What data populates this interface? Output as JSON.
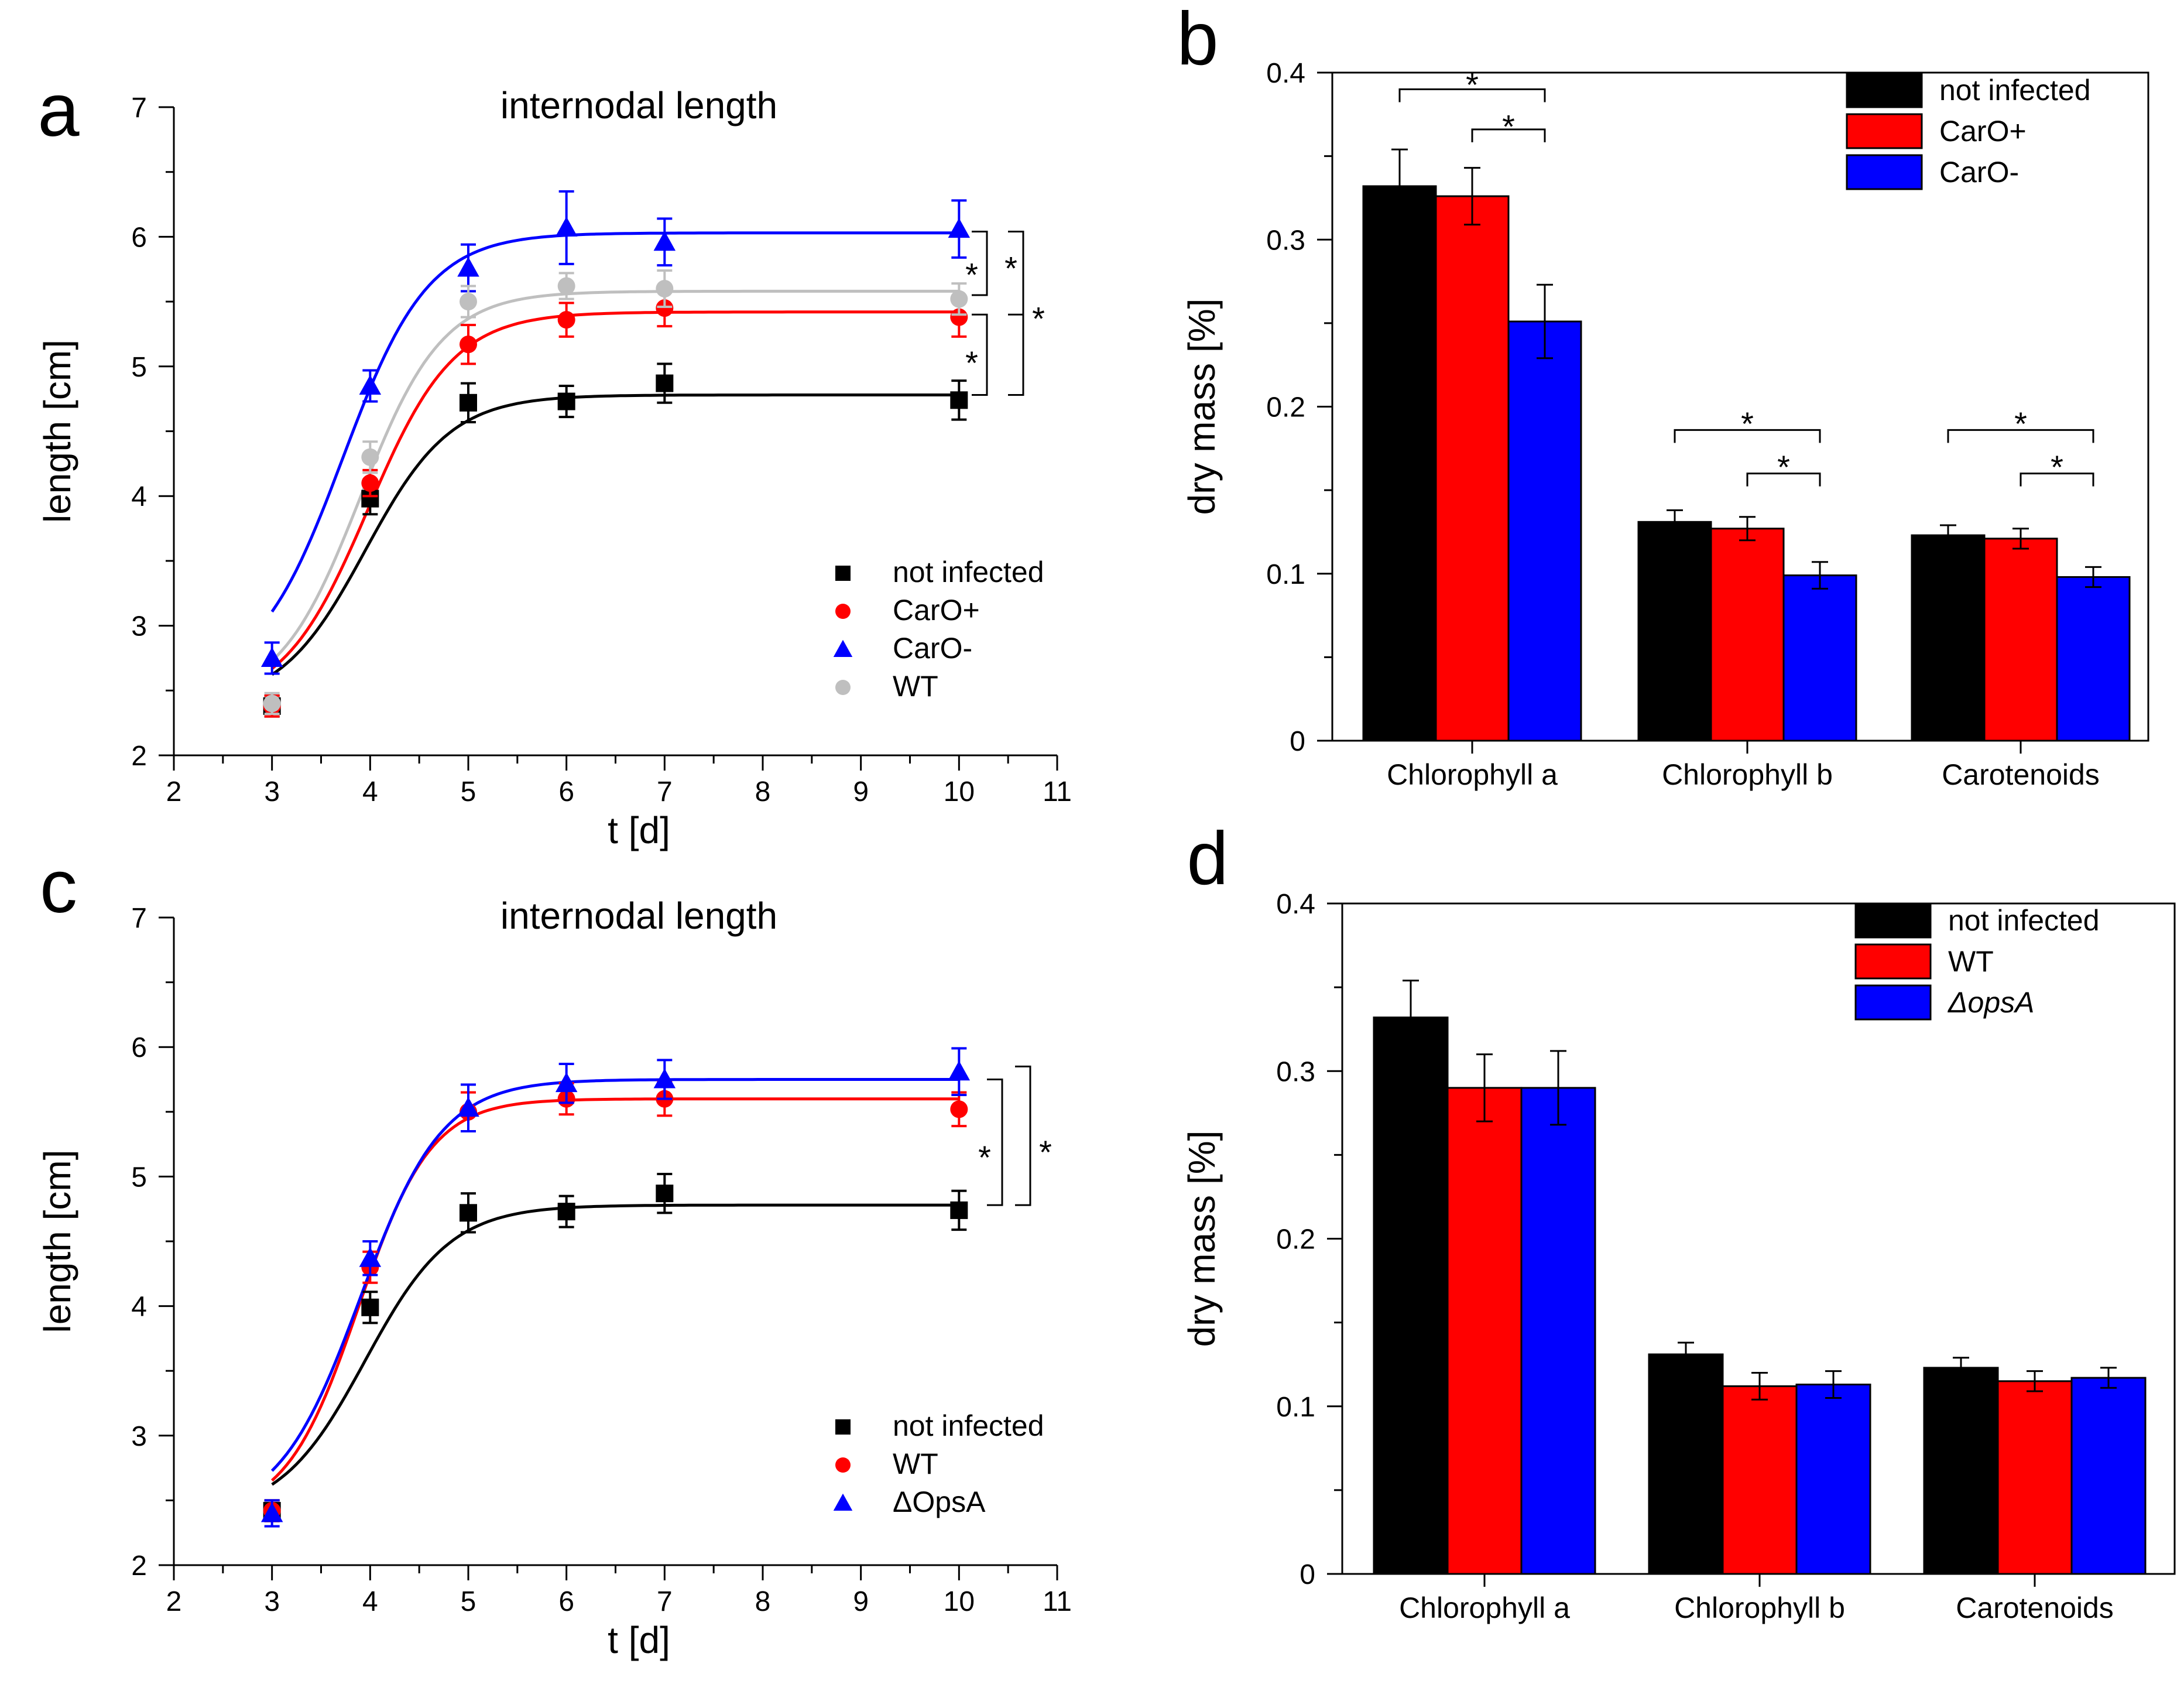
{
  "panels": [
    {
      "id": "a",
      "letter": "a"
    },
    {
      "id": "b",
      "letter": "b"
    },
    {
      "id": "c",
      "letter": "c"
    },
    {
      "id": "d",
      "letter": "d"
    }
  ],
  "chart_data": [
    {
      "id": "a",
      "type": "scatter",
      "panel_label": "a",
      "title": "internodal length",
      "xlabel": "t [d]",
      "ylabel": "length [cm]",
      "xlim": [
        2,
        11
      ],
      "ylim": [
        2,
        7
      ],
      "xticks": [
        "2",
        "3",
        "4",
        "5",
        "6",
        "7",
        "8",
        "9",
        "10",
        "11"
      ],
      "yticks": [
        "2",
        "3",
        "4",
        "5",
        "6",
        "7"
      ],
      "legend_position": "bottom-right",
      "x": [
        3,
        4,
        5,
        6,
        7,
        10
      ],
      "series": [
        {
          "name": "not infected",
          "color": "#000000",
          "marker": "square",
          "values": [
            2.38,
            3.98,
            4.72,
            4.73,
            4.87,
            4.74
          ],
          "err": [
            0.08,
            0.12,
            0.15,
            0.12,
            0.15,
            0.15
          ],
          "fit": {
            "L": 2.38,
            "U": 4.78,
            "k": 2.3,
            "x0": 3.95
          }
        },
        {
          "name": "CarO+",
          "color": "#ff0000",
          "marker": "circle",
          "values": [
            2.38,
            4.1,
            5.17,
            5.36,
            5.45,
            5.38
          ],
          "err": [
            0.08,
            0.1,
            0.15,
            0.13,
            0.14,
            0.15
          ],
          "fit": {
            "L": 2.38,
            "U": 5.42,
            "k": 2.3,
            "x0": 3.98
          }
        },
        {
          "name": "CarO-",
          "color": "#0000ff",
          "marker": "triangle",
          "values": [
            2.75,
            4.85,
            5.76,
            6.07,
            5.96,
            6.06
          ],
          "err": [
            0.12,
            0.12,
            0.18,
            0.28,
            0.18,
            0.22
          ],
          "fit": {
            "L": 2.55,
            "U": 6.03,
            "k": 2.3,
            "x0": 3.72
          }
        },
        {
          "name": "WT",
          "color": "#bfbfbf",
          "marker": "circle",
          "values": [
            2.4,
            4.3,
            5.5,
            5.62,
            5.6,
            5.52
          ],
          "err": [
            0.08,
            0.12,
            0.12,
            0.1,
            0.14,
            0.12
          ],
          "fit": {
            "L": 2.4,
            "U": 5.58,
            "k": 2.4,
            "x0": 3.9
          }
        }
      ],
      "significance_marks": [
        {
          "from": "CarO-",
          "to": "WT",
          "label": "*"
        },
        {
          "from": "CarO-",
          "to": "CarO+",
          "label": "*"
        },
        {
          "from": "CarO-",
          "to": "not infected",
          "label": "*"
        },
        {
          "from": "CarO+",
          "to": "not infected",
          "label": "*"
        }
      ]
    },
    {
      "id": "b",
      "type": "bar",
      "panel_label": "b",
      "xlabel": "",
      "ylabel": "dry mass [%]",
      "ylim": [
        0,
        0.4
      ],
      "yticks": [
        "0",
        "0.1",
        "0.2",
        "0.3",
        "0.4"
      ],
      "categories": [
        "Chlorophyll a",
        "Chlorophyll b",
        "Carotenoids"
      ],
      "legend_position": "top-right",
      "series": [
        {
          "name": "not infected",
          "color": "#000000",
          "values": [
            0.332,
            0.131,
            0.123
          ],
          "err": [
            0.022,
            0.007,
            0.006
          ]
        },
        {
          "name": "CarO+",
          "color": "#ff0000",
          "values": [
            0.326,
            0.127,
            0.121
          ],
          "err": [
            0.017,
            0.007,
            0.006
          ]
        },
        {
          "name": "CarO-",
          "color": "#0000ff",
          "values": [
            0.251,
            0.099,
            0.098
          ],
          "err": [
            0.022,
            0.008,
            0.006
          ]
        }
      ],
      "significance_marks": [
        {
          "category": "Chlorophyll a",
          "from": "not infected",
          "to": "CarO-",
          "label": "*"
        },
        {
          "category": "Chlorophyll a",
          "from": "CarO+",
          "to": "CarO-",
          "label": "*"
        },
        {
          "category": "Chlorophyll b",
          "from": "not infected",
          "to": "CarO-",
          "label": "*"
        },
        {
          "category": "Chlorophyll b",
          "from": "CarO+",
          "to": "CarO-",
          "label": "*"
        },
        {
          "category": "Carotenoids",
          "from": "not infected",
          "to": "CarO-",
          "label": "*"
        },
        {
          "category": "Carotenoids",
          "from": "CarO+",
          "to": "CarO-",
          "label": "*"
        }
      ]
    },
    {
      "id": "c",
      "type": "scatter",
      "panel_label": "c",
      "title": "internodal length",
      "xlabel": "t [d]",
      "ylabel": "length [cm]",
      "xlim": [
        2,
        11
      ],
      "ylim": [
        2,
        7
      ],
      "xticks": [
        "2",
        "3",
        "4",
        "5",
        "6",
        "7",
        "8",
        "9",
        "10",
        "11"
      ],
      "yticks": [
        "2",
        "3",
        "4",
        "5",
        "6",
        "7"
      ],
      "legend_position": "bottom-right",
      "x": [
        3,
        4,
        5,
        6,
        7,
        10
      ],
      "series": [
        {
          "name": "not infected",
          "color": "#000000",
          "marker": "square",
          "values": [
            2.42,
            3.99,
            4.72,
            4.73,
            4.87,
            4.74
          ],
          "err": [
            0.08,
            0.12,
            0.15,
            0.12,
            0.15,
            0.15
          ],
          "fit": {
            "L": 2.38,
            "U": 4.78,
            "k": 2.3,
            "x0": 3.95
          }
        },
        {
          "name": "WT",
          "color": "#ff0000",
          "marker": "circle",
          "values": [
            2.42,
            4.3,
            5.5,
            5.6,
            5.6,
            5.52
          ],
          "err": [
            0.08,
            0.12,
            0.15,
            0.12,
            0.13,
            0.13
          ],
          "fit": {
            "L": 2.38,
            "U": 5.6,
            "k": 2.7,
            "x0": 3.88
          }
        },
        {
          "name": "ΔOpsA",
          "color": "#0000ff",
          "marker": "triangle",
          "values": [
            2.4,
            4.37,
            5.53,
            5.72,
            5.75,
            5.81
          ],
          "err": [
            0.1,
            0.13,
            0.18,
            0.15,
            0.15,
            0.18
          ],
          "fit": {
            "L": 2.38,
            "U": 5.75,
            "k": 2.4,
            "x0": 3.9
          }
        }
      ],
      "significance_marks": [
        {
          "from": "WT",
          "to": "not infected",
          "label": "*"
        },
        {
          "from": "ΔOpsA",
          "to": "not infected",
          "label": "*"
        }
      ]
    },
    {
      "id": "d",
      "type": "bar",
      "panel_label": "d",
      "xlabel": "",
      "ylabel": "dry mass [%]",
      "ylim": [
        0,
        0.4
      ],
      "yticks": [
        "0",
        "0.1",
        "0.2",
        "0.3",
        "0.4"
      ],
      "categories": [
        "Chlorophyll a",
        "Chlorophyll b",
        "Carotenoids"
      ],
      "legend_position": "top-right",
      "series": [
        {
          "name": "not infected",
          "color": "#000000",
          "values": [
            0.332,
            0.131,
            0.123
          ],
          "err": [
            0.022,
            0.007,
            0.006
          ]
        },
        {
          "name": "WT",
          "color": "#ff0000",
          "values": [
            0.29,
            0.112,
            0.115
          ],
          "err": [
            0.02,
            0.008,
            0.006
          ]
        },
        {
          "name": "ΔopsA",
          "color": "#0000ff",
          "values": [
            0.29,
            0.113,
            0.117
          ],
          "err": [
            0.022,
            0.008,
            0.006
          ]
        }
      ],
      "significance_marks": []
    }
  ]
}
